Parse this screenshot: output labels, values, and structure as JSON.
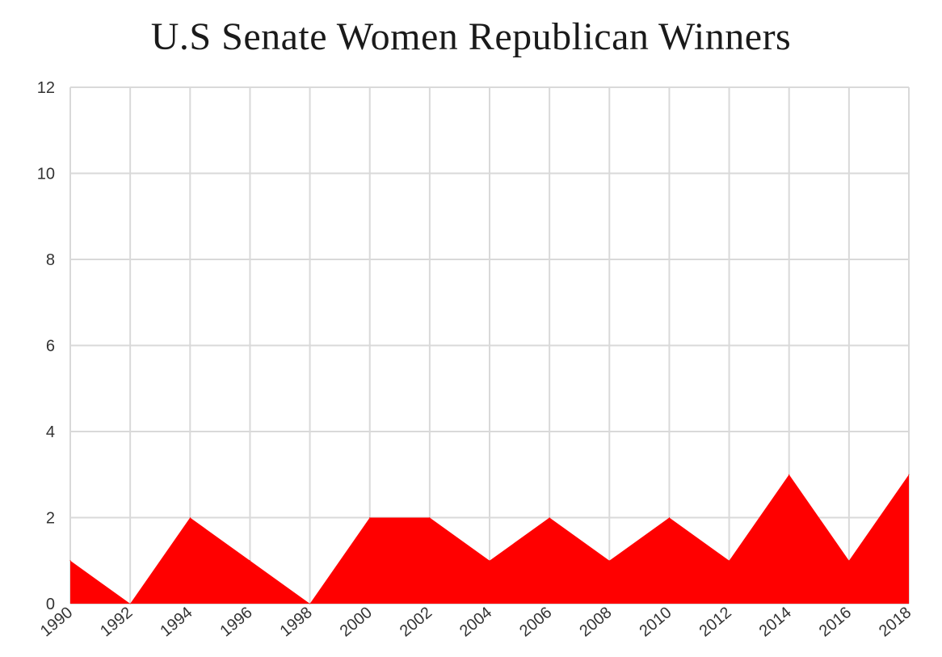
{
  "chart_data": {
    "type": "area",
    "title": "U.S Senate Women Republican Winners",
    "xlabel": "",
    "ylabel": "",
    "x": [
      "1990",
      "1992",
      "1994",
      "1996",
      "1998",
      "2000",
      "2002",
      "2004",
      "2006",
      "2008",
      "2010",
      "2012",
      "2014",
      "2016",
      "2018"
    ],
    "values": [
      1,
      0,
      2,
      1,
      0,
      2,
      2,
      1,
      2,
      1,
      2,
      1,
      3,
      1,
      3
    ],
    "ylim": [
      0,
      12
    ],
    "yticks": [
      "0",
      "2",
      "4",
      "6",
      "8",
      "10",
      "12"
    ],
    "grid": true,
    "legend": "none",
    "fill_color": "#ff0000",
    "grid_color": "#d9d9d9"
  }
}
